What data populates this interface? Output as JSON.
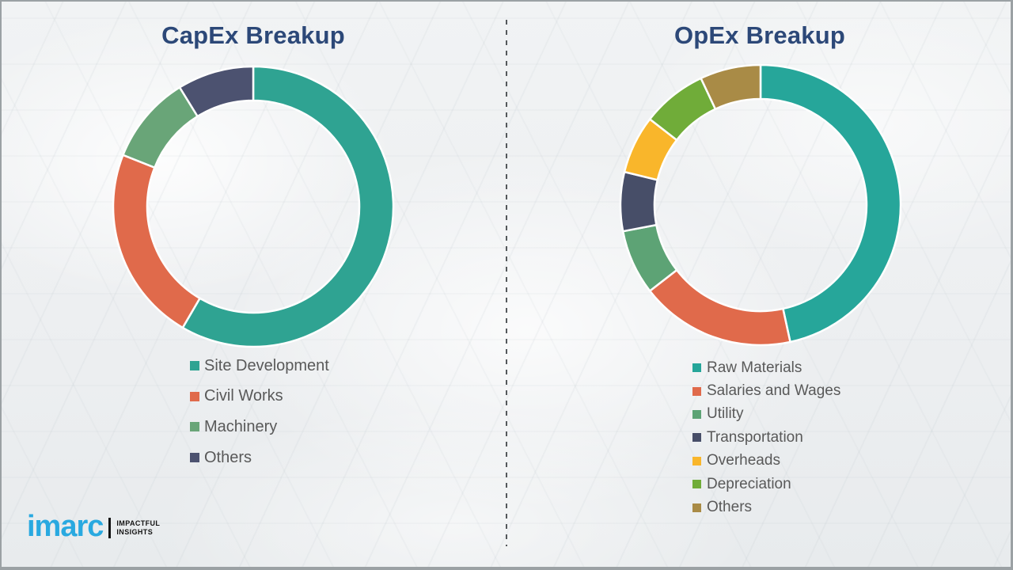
{
  "frame_color": "#9BA1A4",
  "divider": {
    "color": "#54585B",
    "style": "dashed"
  },
  "logo": {
    "brand": "imarc",
    "brand_color": "#29A9E0",
    "tagline_line1": "IMPACTFUL",
    "tagline_line2": "INSIGHTS"
  },
  "chart_data": [
    {
      "type": "pie",
      "variant": "donut",
      "title": "CapEx Breakup",
      "title_color": "#2C4878",
      "start_angle_deg": 0,
      "direction": "clockwise",
      "legend_position": "below",
      "labels": [
        "Site Development",
        "Civil Works",
        "Machinery",
        "Others"
      ],
      "values": [
        58.4,
        22.6,
        10.2,
        8.8
      ],
      "colors": [
        "#2FA392",
        "#E06A4B",
        "#69A578",
        "#4C5270"
      ]
    },
    {
      "type": "pie",
      "variant": "donut",
      "title": "OpEx Breakup",
      "title_color": "#2C4878",
      "start_angle_deg": 0,
      "direction": "clockwise",
      "legend_position": "below",
      "labels": [
        "Raw Materials",
        "Salaries and Wages",
        "Utility",
        "Transportation",
        "Overheads",
        "Depreciation",
        "Others"
      ],
      "values": [
        46.6,
        17.9,
        7.5,
        6.8,
        6.7,
        7.5,
        7.0
      ],
      "colors": [
        "#26A69A",
        "#E06A4B",
        "#5DA375",
        "#474E68",
        "#F9B62B",
        "#70AC39",
        "#A98B46"
      ]
    }
  ]
}
